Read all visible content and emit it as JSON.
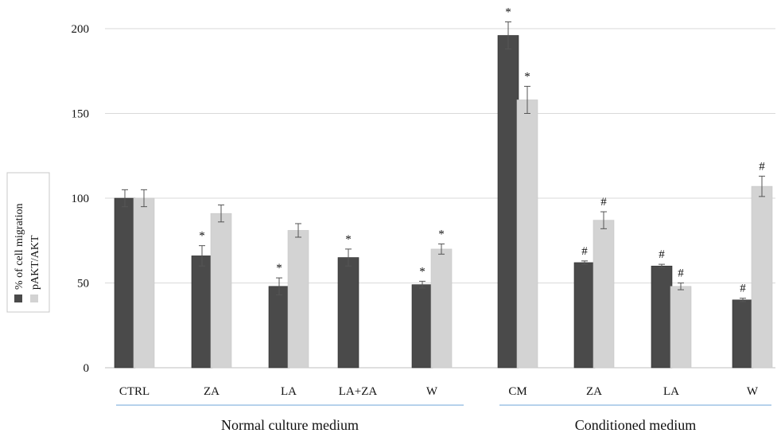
{
  "chart_data": {
    "type": "bar",
    "ylim": [
      0,
      200
    ],
    "yticks": [
      0,
      50,
      100,
      150,
      200
    ],
    "grid": true,
    "legend_position": "left",
    "colors": {
      "migration": "#4a4a4a",
      "pakt": "#d3d3d3",
      "grid": "#d9d9d9",
      "group_line": "#9dc3e6"
    },
    "categories": [
      "CTRL",
      "ZA",
      "LA",
      "LA+ZA",
      "W",
      "CM",
      "ZA",
      "LA",
      "W"
    ],
    "groups": [
      {
        "label": "Normal culture medium",
        "from": 0,
        "to": 4
      },
      {
        "label": "Conditioned medium",
        "from": 5,
        "to": 8
      }
    ],
    "series": [
      {
        "name": "% of cell migration",
        "values": [
          100,
          66,
          48,
          65,
          49,
          196,
          62,
          60,
          40
        ],
        "errors": [
          5,
          6,
          5,
          5,
          2,
          8,
          1,
          1,
          1
        ],
        "marks": [
          "",
          "*",
          "*",
          "*",
          "*",
          "*",
          "#",
          "#",
          "#"
        ]
      },
      {
        "name": "pAKT/AKT",
        "values": [
          100,
          91,
          81,
          null,
          70,
          158,
          87,
          48,
          107
        ],
        "errors": [
          5,
          5,
          4,
          null,
          3,
          8,
          5,
          2,
          6
        ],
        "marks": [
          "",
          "",
          "",
          "",
          "*",
          "*",
          "#",
          "#",
          "#"
        ]
      }
    ]
  }
}
